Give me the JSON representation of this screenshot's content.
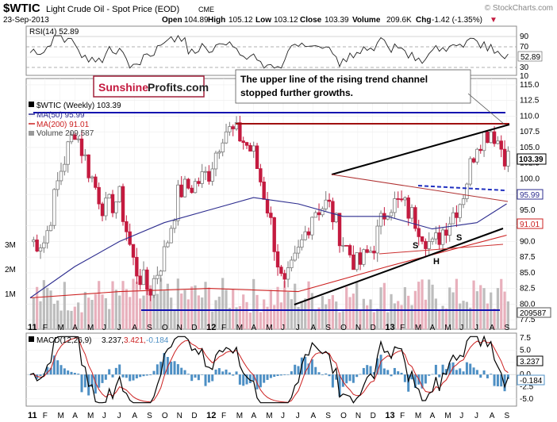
{
  "header": {
    "symbol": "$WTIC",
    "name": "Light Crude Oil - Spot Price (EOD)",
    "exchange": "CME",
    "watermark": "© StockCharts.com",
    "date": "23-Sep-2013",
    "open_label": "Open",
    "open": "104.89",
    "high_label": "High",
    "high": "105.12",
    "low_label": "Low",
    "low": "103.12",
    "close_label": "Close",
    "close": "103.39",
    "volume_label": "Volume",
    "volume": "209.6K",
    "chg_label": "Chg",
    "chg": "-1.42 (-1.35%)",
    "chg_arrow": "▼"
  },
  "rsi": {
    "label": "RSI(14) 52.89",
    "last": "52.89",
    "ticks": [
      "90",
      "70",
      "50",
      "30",
      "10"
    ]
  },
  "main": {
    "legend_title": "$WTIC (Weekly) 103.39",
    "ma50_label": "MA(50) 95.99",
    "ma200_label": "MA(200) 91.01",
    "volume_label": "Volume 209,587",
    "price_ticks": [
      "115.0",
      "112.5",
      "110.0",
      "107.5",
      "105.0",
      "102.5",
      "100.0",
      "97.5",
      "95.0",
      "92.5",
      "90.0",
      "87.5",
      "85.0",
      "82.5",
      "80.0",
      "77.5"
    ],
    "volume_ticks": [
      "3M",
      "2M",
      "1M"
    ],
    "last_price": "103.39",
    "ma50_value": "95.99",
    "ma200_value": "91.01",
    "last_volume": "209587",
    "annotation": "The upper line of the rising trend channel stopped further growths.",
    "annotation_line1": "The upper line of the rising trend channel",
    "annotation_line2": "stopped further growths.",
    "pattern_labels": [
      "S",
      "H",
      "S"
    ],
    "logo_part1": "Sunshine",
    "logo_part2": "Profits.com"
  },
  "macd": {
    "label": "MACD(12,26,9)",
    "v1": "3.237,",
    "v2": "3.421,",
    "v3": "-0.184",
    "ticks": [
      "7.5",
      "5.0",
      "2.5",
      "0.0",
      "-2.5",
      "-5.0"
    ],
    "last_macd": "3.237",
    "last_hist": "-0.184"
  },
  "x_axis": {
    "labels": [
      "11",
      "F",
      "M",
      "A",
      "M",
      "J",
      "J",
      "A",
      "S",
      "O",
      "N",
      "D",
      "12",
      "F",
      "M",
      "A",
      "M",
      "J",
      "J",
      "A",
      "S",
      "O",
      "N",
      "D",
      "13",
      "F",
      "M",
      "A",
      "M",
      "J",
      "J",
      "A",
      "S"
    ]
  },
  "colors": {
    "up": "#7a7a7a",
    "down": "#c41a3f",
    "ma50": "#2d2d8f",
    "ma200": "#cc2020",
    "volume_up": "#bdbdbd",
    "volume_down": "#e8b0bc",
    "macd_hist": "#4d8fc4"
  },
  "chart_data": {
    "type": "line",
    "title": "$WTIC Light Crude Oil - Spot Price (EOD) CME",
    "series": [
      {
        "name": "$WTIC (Weekly) 103.39",
        "x": [
          "2011-01",
          "2011-02",
          "2011-03",
          "2011-04",
          "2011-05",
          "2011-06",
          "2011-07",
          "2011-08",
          "2011-09",
          "2011-10",
          "2011-11",
          "2011-12",
          "2012-01",
          "2012-02",
          "2012-03",
          "2012-04",
          "2012-05",
          "2012-06",
          "2012-07",
          "2012-08",
          "2012-09",
          "2012-10",
          "2012-11",
          "2012-12",
          "2013-01",
          "2013-02",
          "2013-03",
          "2013-04",
          "2013-05",
          "2013-06",
          "2013-07",
          "2013-08",
          "2013-09"
        ],
        "values": [
          90,
          90,
          101,
          108,
          101,
          95,
          97,
          86,
          82,
          88,
          98,
          99,
          101,
          108,
          107,
          104,
          95,
          82,
          88,
          95,
          96,
          90,
          86,
          89,
          96,
          96,
          93,
          89,
          93,
          97,
          106,
          108,
          103.4
        ]
      },
      {
        "name": "MA(50) 95.99",
        "x": [
          "2011-01",
          "2011-04",
          "2011-07",
          "2011-10",
          "2012-01",
          "2012-04",
          "2012-07",
          "2012-10",
          "2013-01",
          "2013-04",
          "2013-07",
          "2013-09"
        ],
        "values": [
          81,
          86,
          90,
          93,
          95,
          97,
          96,
          94,
          94,
          92,
          93,
          96
        ]
      },
      {
        "name": "MA(200) 91.01",
        "x": [
          "2011-01",
          "2011-07",
          "2012-01",
          "2012-07",
          "2013-01",
          "2013-09"
        ],
        "values": [
          81,
          82,
          82.5,
          82,
          86,
          91
        ]
      }
    ],
    "ylim": [
      76,
      116
    ],
    "last_close": 103.39,
    "rsi_last": 52.89,
    "macd": {
      "macd": 3.237,
      "signal": 3.421,
      "histogram": -0.184
    }
  }
}
